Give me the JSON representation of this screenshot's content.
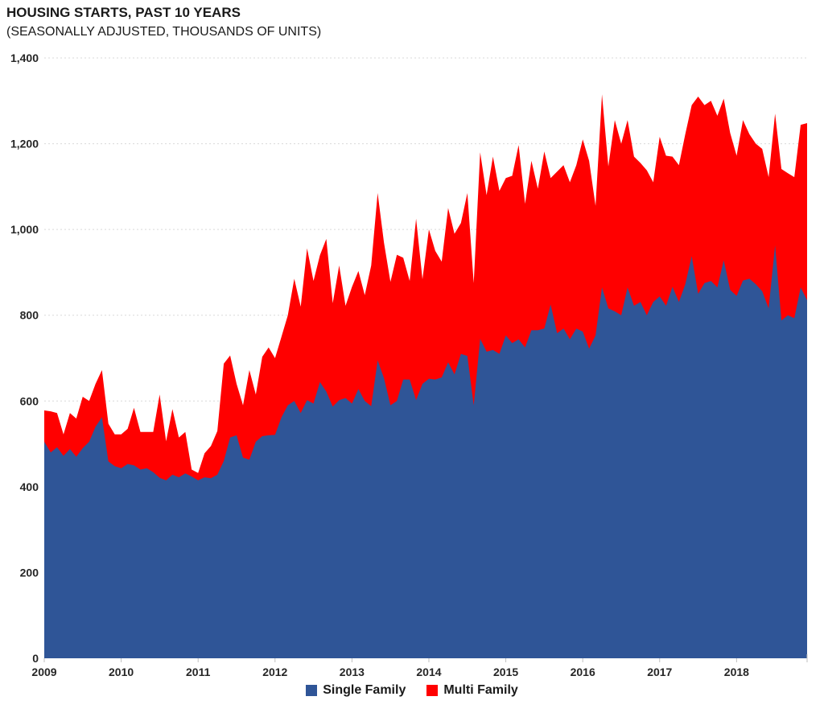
{
  "header": {
    "title": "HOUSING STARTS, PAST 10 YEARS",
    "subtitle": "(SEASONALLY ADJUSTED, THOUSANDS OF UNITS)"
  },
  "legend": {
    "single_family_label": "Single Family",
    "multi_family_label": "Multi Family"
  },
  "colors": {
    "single_family": "#2F5597",
    "multi_family": "#FF0000",
    "gridline": "#D9D9D9",
    "tick": "#BFBFBF",
    "axis_text": "#262626"
  },
  "chart_data": {
    "type": "area",
    "stacked": true,
    "title": "HOUSING STARTS, PAST 10 YEARS",
    "subtitle": "(SEASONALLY ADJUSTED, THOUSANDS OF UNITS)",
    "xlabel": "",
    "ylabel": "",
    "ylim": [
      0,
      1400
    ],
    "ytick_values": [
      0,
      200,
      400,
      600,
      800,
      1000,
      1200,
      1400
    ],
    "ytick_labels": [
      "0",
      "200",
      "400",
      "600",
      "800",
      "1,000",
      "1,200",
      "1,400"
    ],
    "x_year_labels": [
      "2009",
      "2010",
      "2011",
      "2012",
      "2013",
      "2014",
      "2015",
      "2016",
      "2017",
      "2018"
    ],
    "months_per_year": 12,
    "grid": "horizontal-dotted",
    "legend_position": "bottom-center",
    "series": [
      {
        "name": "Single Family",
        "color": "#2F5597",
        "values": [
          505,
          480,
          492,
          472,
          488,
          470,
          490,
          505,
          540,
          562,
          459,
          448,
          443,
          453,
          450,
          440,
          443,
          434,
          421,
          415,
          428,
          422,
          431,
          424,
          415,
          422,
          420,
          428,
          460,
          515,
          520,
          468,
          463,
          505,
          518,
          520,
          521,
          562,
          590,
          600,
          572,
          602,
          594,
          644,
          622,
          587,
          602,
          607,
          594,
          628,
          600,
          588,
          695,
          653,
          590,
          600,
          650,
          650,
          602,
          640,
          652,
          650,
          655,
          690,
          662,
          710,
          705,
          590,
          745,
          715,
          719,
          710,
          753,
          735,
          744,
          725,
          765,
          765,
          769,
          825,
          758,
          769,
          744,
          769,
          762,
          722,
          753,
          865,
          816,
          809,
          800,
          865,
          822,
          831,
          800,
          831,
          844,
          822,
          866,
          831,
          872,
          938,
          850,
          875,
          880,
          865,
          928,
          859,
          845,
          881,
          885,
          872,
          856,
          816,
          963,
          788,
          800,
          793,
          865,
          835
        ]
      },
      {
        "name": "Multi Family",
        "color": "#FF0000",
        "values": [
          73,
          96,
          80,
          50,
          84,
          89,
          120,
          95,
          100,
          110,
          88,
          74,
          79,
          82,
          134,
          88,
          85,
          94,
          194,
          91,
          153,
          93,
          97,
          16,
          17,
          56,
          75,
          102,
          227,
          191,
          120,
          122,
          209,
          110,
          185,
          205,
          179,
          188,
          210,
          285,
          248,
          354,
          286,
          296,
          356,
          241,
          314,
          215,
          272,
          275,
          247,
          328,
          390,
          316,
          288,
          341,
          284,
          230,
          423,
          244,
          348,
          300,
          270,
          360,
          328,
          305,
          380,
          285,
          435,
          365,
          451,
          380,
          367,
          390,
          453,
          335,
          395,
          330,
          413,
          295,
          377,
          381,
          366,
          381,
          448,
          438,
          302,
          450,
          331,
          446,
          400,
          390,
          348,
          324,
          338,
          279,
          372,
          350,
          304,
          319,
          350,
          352,
          460,
          415,
          420,
          400,
          377,
          366,
          327,
          374,
          337,
          328,
          332,
          306,
          307,
          353,
          331,
          329,
          379,
          413
        ]
      }
    ]
  }
}
